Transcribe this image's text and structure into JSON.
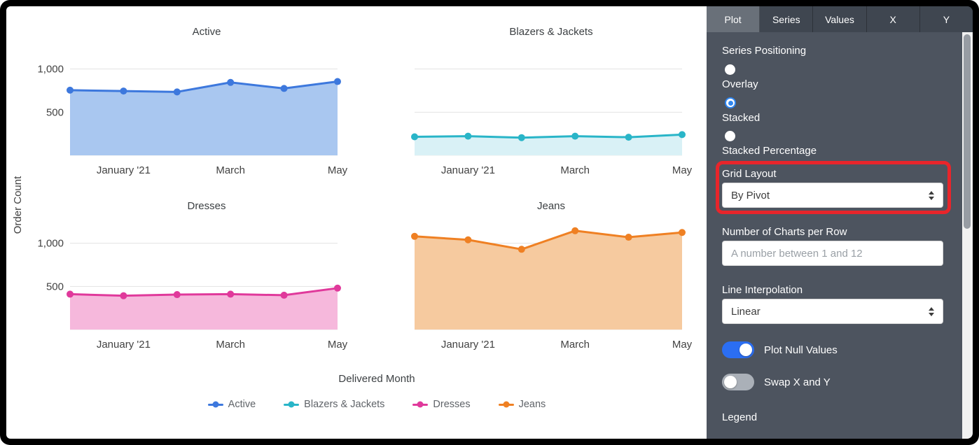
{
  "chart_area": {
    "y_axis_title": "Order Count",
    "x_axis_title": "Delivered Month",
    "legend": [
      {
        "label": "Active",
        "color": "#3d78dd"
      },
      {
        "label": "Blazers & Jackets",
        "color": "#29b5c8"
      },
      {
        "label": "Dresses",
        "color": "#e0399b"
      },
      {
        "label": "Jeans",
        "color": "#ef8023"
      }
    ]
  },
  "chart_data": [
    {
      "type": "area",
      "title": "Active",
      "color": "#3d78dd",
      "fill_color": "#a9c7f0",
      "values": [
        755,
        745,
        735,
        845,
        775,
        855
      ],
      "x_tick_labels": [
        "January '21",
        "March",
        "May"
      ],
      "x_tick_indices": [
        1,
        3,
        5
      ],
      "y_grid": [
        500,
        1000
      ],
      "y_grid_labels": [
        "500",
        "1,000"
      ],
      "show_y_labels": true,
      "ylim": [
        0,
        1200
      ]
    },
    {
      "type": "area",
      "title": "Blazers & Jackets",
      "color": "#29b5c8",
      "fill_color": "#d9f1f6",
      "values": [
        215,
        222,
        205,
        222,
        210,
        240
      ],
      "x_tick_labels": [
        "January '21",
        "March",
        "May"
      ],
      "x_tick_indices": [
        1,
        3,
        5
      ],
      "y_grid": [
        500,
        1000
      ],
      "y_grid_labels": [
        "500",
        "1,000"
      ],
      "show_y_labels": false,
      "ylim": [
        0,
        1200
      ]
    },
    {
      "type": "area",
      "title": "Dresses",
      "color": "#e0399b",
      "fill_color": "#f6b8dc",
      "values": [
        410,
        392,
        405,
        410,
        398,
        480
      ],
      "x_tick_labels": [
        "January '21",
        "March",
        "May"
      ],
      "x_tick_indices": [
        1,
        3,
        5
      ],
      "y_grid": [
        500,
        1000
      ],
      "y_grid_labels": [
        "500",
        "1,000"
      ],
      "show_y_labels": true,
      "ylim": [
        0,
        1200
      ]
    },
    {
      "type": "area",
      "title": "Jeans",
      "color": "#ef8023",
      "fill_color": "#f6ca9f",
      "values": [
        1080,
        1040,
        930,
        1145,
        1070,
        1125
      ],
      "x_tick_labels": [
        "January '21",
        "March",
        "May"
      ],
      "x_tick_indices": [
        1,
        3,
        5
      ],
      "y_grid": [
        500,
        1000
      ],
      "y_grid_labels": [
        "500",
        "1,000"
      ],
      "show_y_labels": false,
      "ylim": [
        0,
        1200
      ]
    }
  ],
  "panel": {
    "tabs": [
      {
        "label": "Plot",
        "active": true
      },
      {
        "label": "Series",
        "active": false
      },
      {
        "label": "Values",
        "active": false
      },
      {
        "label": "X",
        "active": false
      },
      {
        "label": "Y",
        "active": false
      }
    ],
    "series_positioning": {
      "label": "Series Positioning",
      "options": [
        {
          "label": "Overlay",
          "selected": false
        },
        {
          "label": "Stacked",
          "selected": true
        },
        {
          "label": "Stacked Percentage",
          "selected": false
        }
      ]
    },
    "grid_layout": {
      "label": "Grid Layout",
      "value": "By Pivot"
    },
    "charts_per_row": {
      "label": "Number of Charts per Row",
      "value": "",
      "placeholder": "A number between 1 and 12"
    },
    "line_interpolation": {
      "label": "Line Interpolation",
      "value": "Linear"
    },
    "toggles": [
      {
        "label": "Plot Null Values",
        "on": true
      },
      {
        "label": "Swap X and Y",
        "on": false
      }
    ],
    "legend_section_label": "Legend",
    "accent": {
      "radio_selected": "#2f86f0",
      "toggle_on": "#2b6ef2",
      "annotation": "#e8252b"
    }
  }
}
